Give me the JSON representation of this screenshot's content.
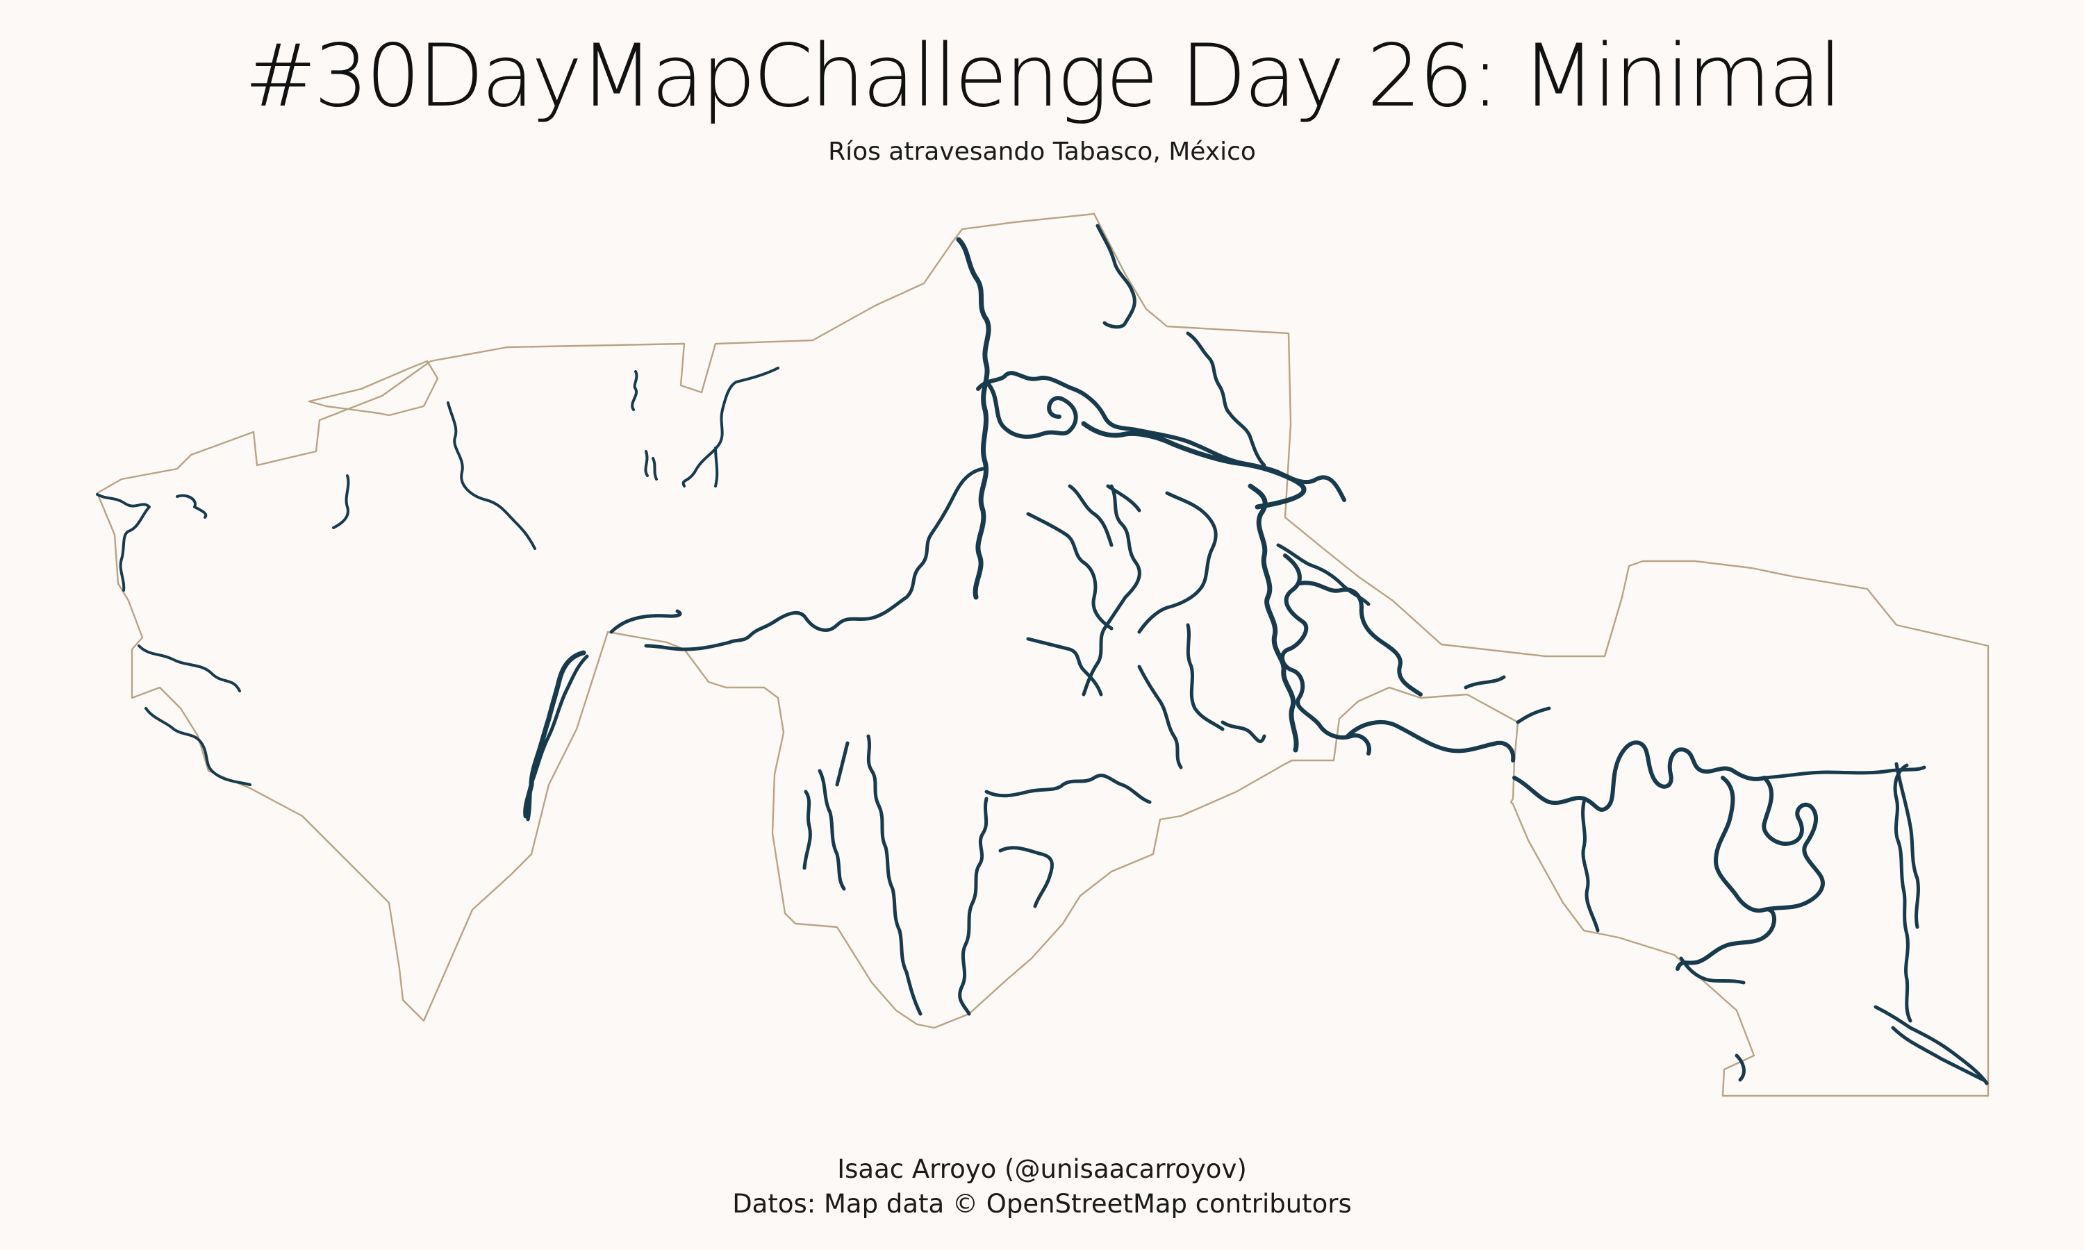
{
  "title": "#30DayMapChallenge Day 26: Minimal",
  "subtitle": "Ríos atravesando Tabasco, México",
  "author": "Isaac Arroyo (@unisaacarroyov)",
  "source": "Datos: Map data © OpenStreetMap contributors",
  "colors": {
    "background": "#fcf9f6",
    "border": "#b9a384",
    "rivers": "#173a4d",
    "text": "#111111"
  }
}
